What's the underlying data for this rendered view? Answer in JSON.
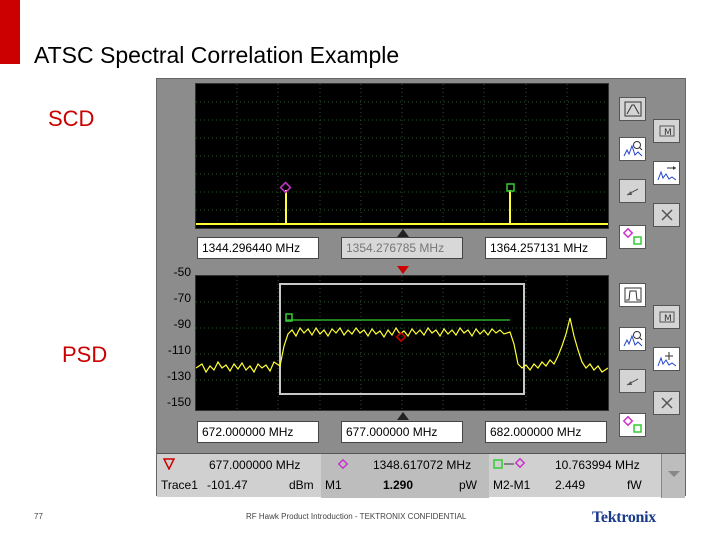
{
  "slide": {
    "title": "ATSC Spectral Correlation Example",
    "label_scd": "SCD",
    "label_psd": "PSD",
    "page_number": "77",
    "footer": "RF Hawk Product Introduction - TEKTRONIX CONFIDENTIAL",
    "logo": "Tektronix"
  },
  "scd": {
    "freq_left": "1344.296440 MHz",
    "freq_center": "1354.276785 MHz",
    "freq_right": "1364.257131 MHz"
  },
  "psd": {
    "y_ticks": [
      "-50",
      "-70",
      "-90",
      "-110",
      "-130",
      "-150"
    ],
    "freq_left": "672.000000 MHz",
    "freq_center": "677.000000 MHz",
    "freq_right": "682.000000 MHz"
  },
  "readout": {
    "m1_freq": "677.000000 MHz",
    "trace_label": "Trace1",
    "m1_value": "-101.47",
    "m1_unit": "dBm",
    "m1_label": "M1",
    "m2_freq": "1348.617072 MHz",
    "m2_value": "1.290",
    "m2_unit": "pW",
    "delta_freq": "10.763994 MHz",
    "delta_label": "M2-M1",
    "delta_value": "2.449",
    "delta_unit": "fW"
  },
  "colors": {
    "accent_red": "#cc0000",
    "trace_yellow": "#ffff33",
    "marker_magenta": "#cc33cc",
    "marker_green": "#33cc33",
    "brand_blue": "#1a3a8a"
  },
  "icons": [
    "peak-icon",
    "zoom-icon",
    "marker-arrow-icon",
    "undo-icon",
    "close-icon",
    "marker-pair-icon",
    "bandpass-icon",
    "pan-icon"
  ]
}
